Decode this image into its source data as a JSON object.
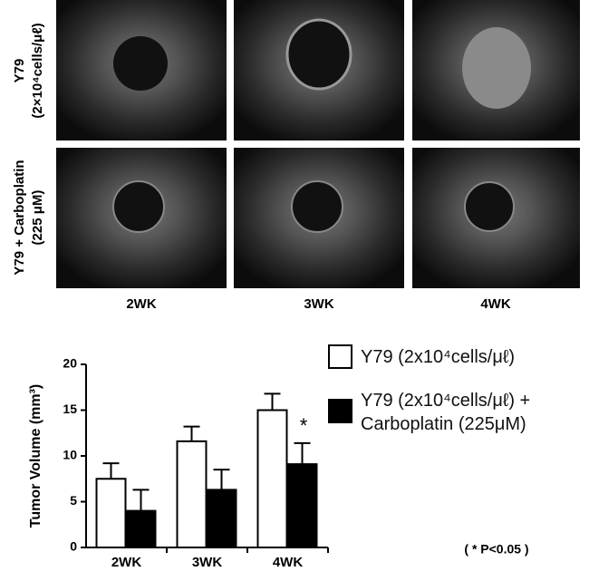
{
  "image_panel": {
    "row_labels": [
      [
        "Y79",
        "(2×10⁴cells/μℓ)"
      ],
      [
        "Y79 + Carboplatin",
        "(225 μM)"
      ]
    ],
    "column_labels": [
      "2WK",
      "3WK",
      "4WK"
    ]
  },
  "chart_data": {
    "type": "bar",
    "ylabel": "Tumor Volume (mm³)",
    "categories": [
      "2WK",
      "3WK",
      "4WK"
    ],
    "series": [
      {
        "name": "Y79 (2x10⁴cells/μℓ)",
        "color": "#ffffff",
        "values": [
          7.5,
          11.6,
          15.0
        ],
        "errors": [
          1.7,
          1.6,
          1.8
        ]
      },
      {
        "name": "Y79 (2x10⁴cells/μℓ) + Carboplatin (225μM)",
        "color": "#000000",
        "values": [
          4.0,
          6.3,
          9.1
        ],
        "errors": [
          2.3,
          2.2,
          2.3
        ]
      }
    ],
    "ylim": [
      0,
      20
    ],
    "yticks": [
      0,
      5,
      10,
      15,
      20
    ],
    "annotations": [
      "*",
      "( * P<0.05 )"
    ]
  }
}
